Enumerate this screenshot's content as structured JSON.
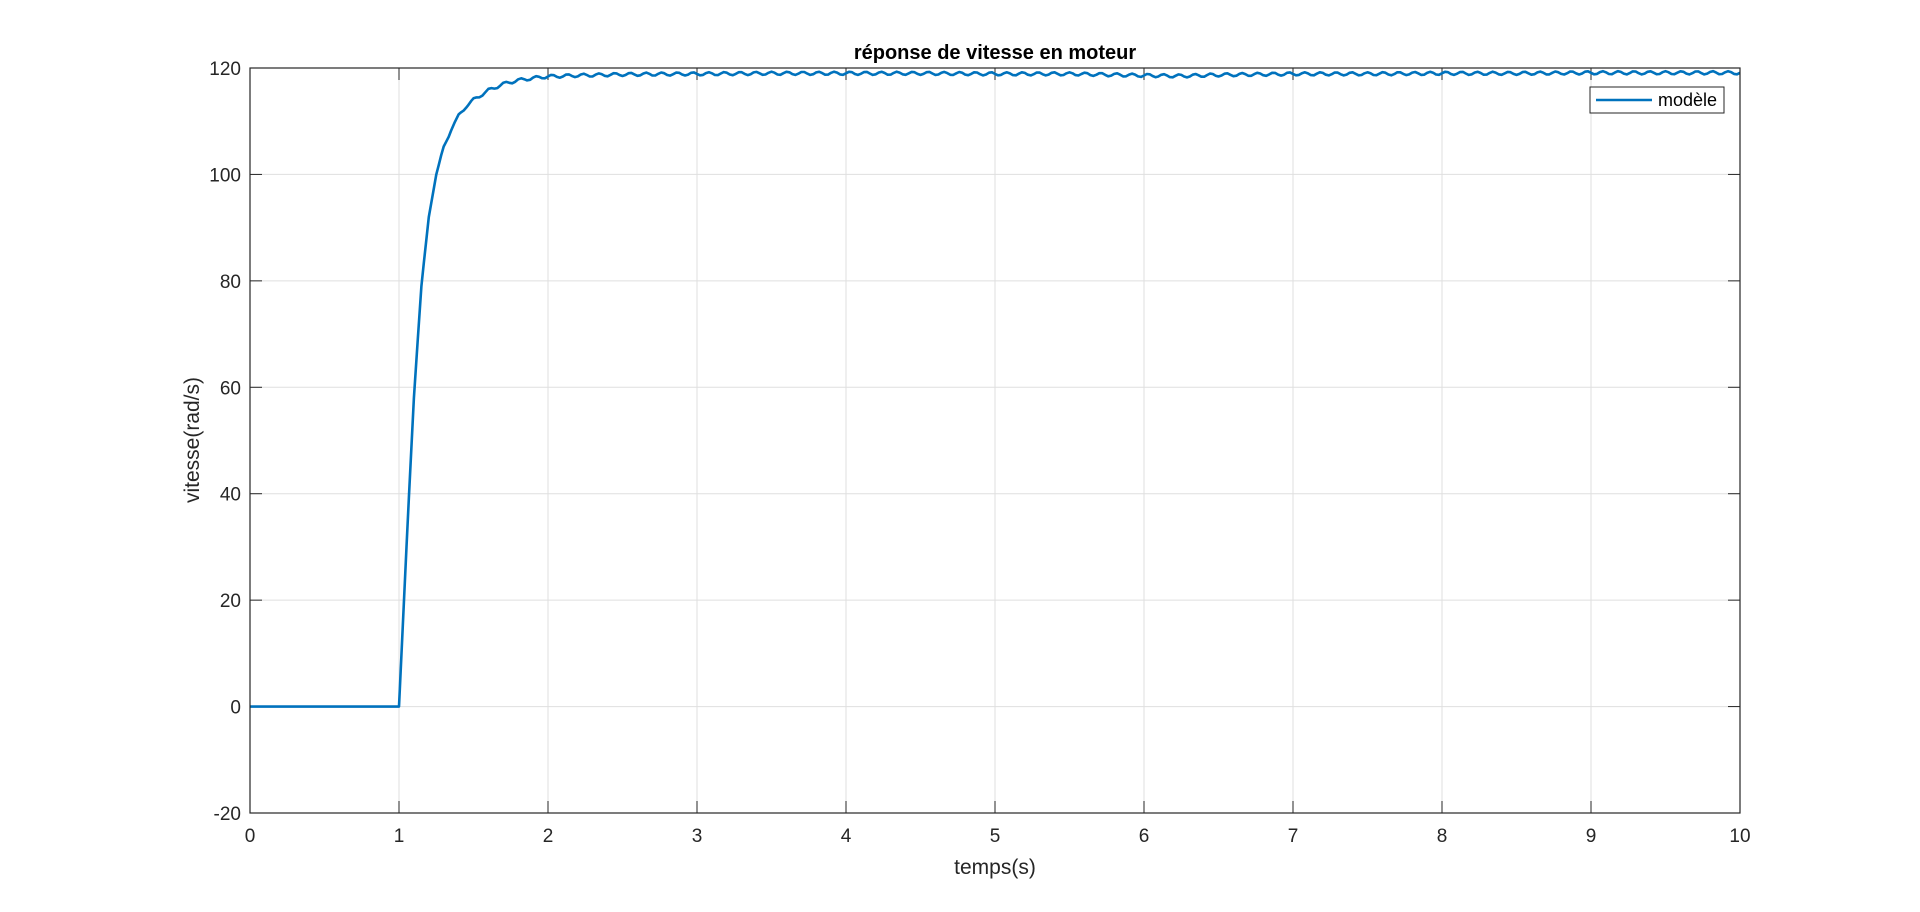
{
  "chart_data": {
    "type": "line",
    "title": "réponse de vitesse en moteur",
    "xlabel": "temps(s)",
    "ylabel": "vitesse(rad/s)",
    "xlim": [
      0,
      10
    ],
    "ylim": [
      -20,
      120
    ],
    "xticks": [
      0,
      1,
      2,
      3,
      4,
      5,
      6,
      7,
      8,
      9,
      10
    ],
    "yticks": [
      -20,
      0,
      20,
      40,
      60,
      80,
      100,
      120
    ],
    "xtick_labels": [
      "0",
      "1",
      "2",
      "3",
      "4",
      "5",
      "6",
      "7",
      "8",
      "9",
      "10"
    ],
    "ytick_labels": [
      "-20",
      "0",
      "20",
      "40",
      "60",
      "80",
      "100",
      "120"
    ],
    "grid": true,
    "legend_position": "top-right",
    "series": [
      {
        "name": "modèle",
        "color": "#0072BD",
        "x": [
          0,
          1.0,
          1.05,
          1.1,
          1.15,
          1.2,
          1.25,
          1.3,
          1.35,
          1.4,
          1.45,
          1.5,
          1.6,
          1.7,
          1.8,
          1.9,
          2.0,
          2.2,
          2.5,
          3.0,
          3.5,
          4.0,
          4.5,
          5.0,
          5.5,
          6.0,
          6.25,
          6.5,
          7.0,
          7.5,
          8.0,
          8.5,
          9.0,
          9.5,
          10.0
        ],
        "y": [
          0,
          0,
          30,
          58,
          79,
          92,
          100,
          105,
          108.5,
          111,
          112.8,
          114,
          115.8,
          117,
          117.7,
          118.1,
          118.4,
          118.6,
          118.8,
          118.9,
          119,
          119,
          119,
          118.9,
          118.9,
          118.6,
          118.5,
          118.7,
          118.9,
          118.9,
          119,
          119,
          119.1,
          119.1,
          119.1
        ]
      }
    ]
  }
}
